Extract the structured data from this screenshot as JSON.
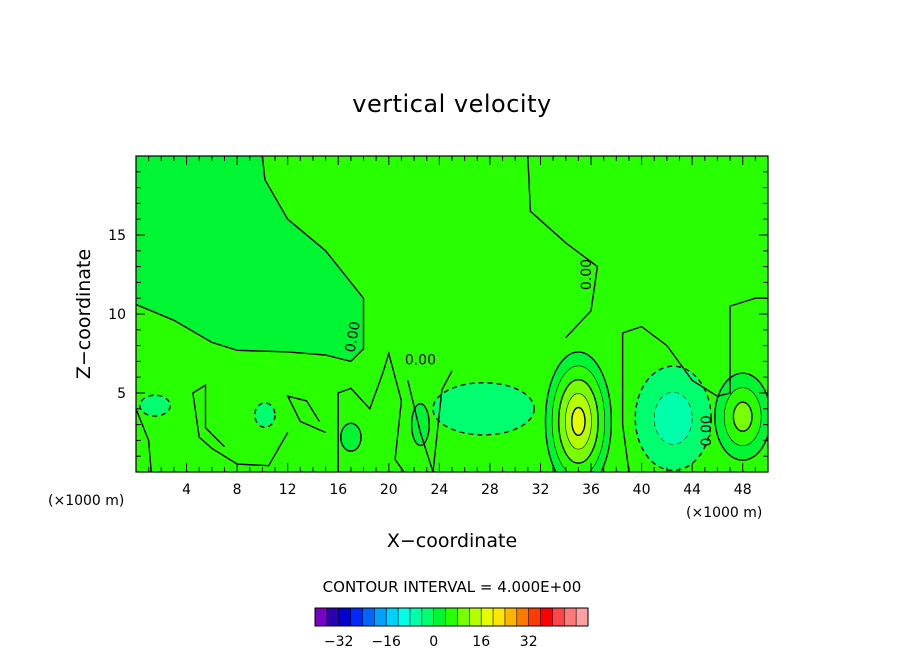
{
  "chart_data": {
    "type": "heatmap",
    "title": "vertical velocity",
    "xlabel": "X−coordinate",
    "ylabel": "Z−coordinate",
    "x_unit": "(×1000 m)",
    "y_unit": "(×1000 m)",
    "xlim": [
      0,
      50
    ],
    "ylim": [
      0,
      20
    ],
    "x_ticks": [
      4,
      8,
      12,
      16,
      20,
      24,
      28,
      32,
      36,
      40,
      44,
      48
    ],
    "x_tick_labels": [
      "4",
      "8",
      "12",
      "16",
      "20",
      "24",
      "28",
      "32",
      "36",
      "40",
      "44",
      "48"
    ],
    "y_ticks": [
      5,
      10,
      15
    ],
    "y_tick_labels": [
      "5",
      "10",
      "15"
    ],
    "contour_interval_text": "CONTOUR INTERVAL = 4.000E+00",
    "contour_label_text": "0.00",
    "contour_labels": [
      {
        "text": "0.00",
        "x": 17.5,
        "z": 8.5,
        "angle": -80
      },
      {
        "text": "0.00",
        "x": 22.5,
        "z": 6.8,
        "angle": 0
      },
      {
        "text": "0.00",
        "x": 36.0,
        "z": 12.5,
        "angle": -90
      },
      {
        "text": "0.00",
        "x": 45.5,
        "z": 2.6,
        "angle": -90
      }
    ],
    "features": [
      {
        "kind": "updraft",
        "x": 35.0,
        "z": 3.2,
        "rx": 2.6,
        "rz": 8.0,
        "peak": 20
      },
      {
        "kind": "updraft",
        "x": 48.0,
        "z": 3.5,
        "rx": 2.2,
        "rz": 5.0,
        "peak": 14
      },
      {
        "kind": "updraft",
        "x": 17.0,
        "z": 2.2,
        "rx": 0.8,
        "rz": 1.6,
        "peak": 5
      },
      {
        "kind": "updraft",
        "x": 22.5,
        "z": 3.0,
        "rx": 0.7,
        "rz": 2.4,
        "peak": 5
      },
      {
        "kind": "downdraft",
        "x": 42.5,
        "z": 3.4,
        "rx": 3.0,
        "rz": 6.0,
        "peak": -10
      },
      {
        "kind": "downdraft",
        "x": 27.5,
        "z": 4.0,
        "rx": 4.0,
        "rz": 3.0,
        "peak": -6
      },
      {
        "kind": "downdraft",
        "x": 1.5,
        "z": 4.2,
        "rx": 1.2,
        "rz": 1.2,
        "peak": -4
      },
      {
        "kind": "downdraft",
        "x": 10.2,
        "z": 3.6,
        "rx": 0.8,
        "rz": 1.4,
        "peak": -4
      }
    ],
    "colorbar": {
      "ticks": [
        -32,
        -16,
        0,
        16,
        32
      ],
      "tick_labels": [
        "−32",
        "−16",
        "0",
        "16",
        "32"
      ],
      "min": -40,
      "step": 4,
      "colors": [
        "#7a00c8",
        "#2a00b4",
        "#0000d2",
        "#0028ff",
        "#0064ff",
        "#00a0ff",
        "#00d2ff",
        "#00ffe6",
        "#00ffaa",
        "#00ff6e",
        "#00f532",
        "#28ff00",
        "#78ff00",
        "#b4ff00",
        "#e6ff00",
        "#ffe600",
        "#ffb400",
        "#ff7800",
        "#ff3c00",
        "#ff0000",
        "#ff4646",
        "#ff7878",
        "#ffa0a0"
      ]
    }
  }
}
